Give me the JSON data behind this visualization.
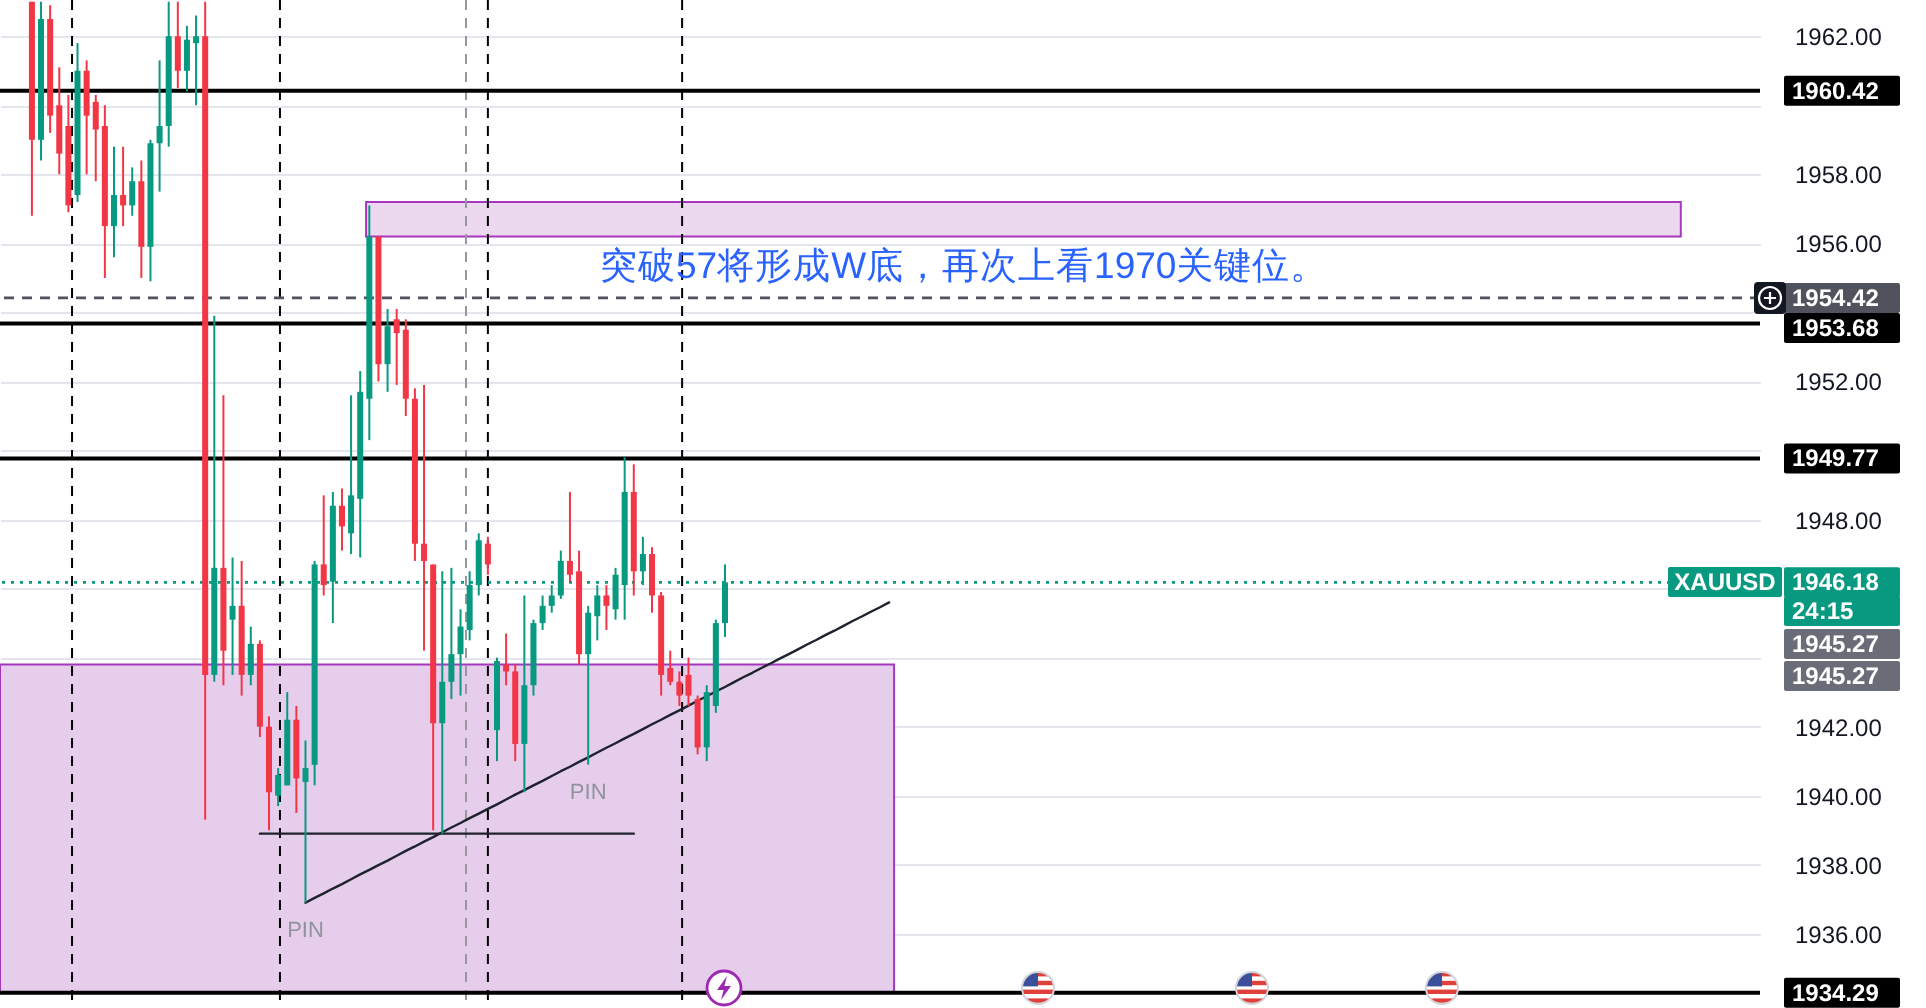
{
  "chart_data": {
    "type": "candlestick",
    "categories": [
      null,
      null,
      null,
      null,
      null,
      null,
      null,
      null,
      null,
      null,
      null,
      null,
      null,
      null,
      null,
      null,
      null,
      null,
      null,
      null,
      null,
      null,
      null,
      null,
      null,
      null,
      null,
      null,
      null,
      null,
      null,
      null,
      null,
      null,
      null,
      null,
      null,
      null,
      null,
      null,
      null,
      null,
      null,
      null,
      null,
      null,
      null,
      null,
      null,
      null,
      null,
      null,
      null,
      null,
      null,
      null,
      null,
      null,
      null,
      null,
      null,
      null,
      null,
      null,
      null,
      null,
      null,
      null,
      null,
      null,
      null,
      null,
      null,
      null,
      null,
      null,
      null,
      null,
      null,
      null,
      null,
      null,
      null,
      null,
      null,
      null,
      null,
      null,
      null,
      null,
      null,
      null,
      null,
      null,
      null,
      null,
      null,
      null,
      null,
      null,
      null,
      null,
      null,
      null,
      null,
      null,
      null,
      null,
      null,
      null,
      null,
      null,
      null,
      null,
      null,
      null,
      null,
      null,
      null,
      null,
      null,
      null,
      null,
      null,
      null,
      null,
      null,
      null,
      null,
      null,
      null,
      null,
      null,
      null,
      null,
      null,
      null,
      null,
      null,
      null,
      null,
      null,
      null,
      null,
      null,
      null,
      null,
      null,
      null,
      null,
      null,
      null,
      null,
      null,
      null,
      null,
      null,
      null,
      null,
      null,
      null,
      null,
      null,
      null,
      null,
      null,
      null,
      null,
      null,
      null,
      null,
      null,
      null,
      null,
      null,
      null,
      null,
      null,
      null,
      null,
      null,
      null,
      null,
      null,
      null,
      null,
      null,
      null,
      null,
      null,
      null,
      null,
      null
    ],
    "ohlc": [
      null,
      null,
      null,
      [
        1963.0,
        1963.0,
        1956.8,
        1959.0
      ],
      [
        1959.0,
        1963.0,
        1958.4,
        1962.5
      ],
      [
        1962.5,
        1962.9,
        1959.2,
        1959.7
      ],
      [
        1960.0,
        1961.1,
        1958.0,
        1958.6
      ],
      [
        1959.4,
        1960.3,
        1956.9,
        1957.1
      ],
      [
        1957.4,
        1961.8,
        1957.2,
        1961.0
      ],
      [
        1961.0,
        1961.3,
        1958.0,
        1959.7
      ],
      [
        1960.1,
        1960.3,
        1957.8,
        1959.3
      ],
      [
        1959.4,
        1960.0,
        1955.0,
        1956.5
      ],
      [
        1956.5,
        1958.8,
        1955.6,
        1957.4
      ],
      [
        1957.4,
        1958.8,
        1956.5,
        1957.1
      ],
      [
        1957.1,
        1958.2,
        1956.8,
        1957.8
      ],
      [
        1957.8,
        1958.4,
        1955.0,
        1955.9
      ],
      [
        1955.9,
        1959.0,
        1954.9,
        1958.9
      ],
      [
        1958.9,
        1961.3,
        1957.5,
        1959.4
      ],
      [
        1959.4,
        1963.0,
        1958.8,
        1962.0
      ],
      [
        1962.0,
        1963.0,
        1960.5,
        1961.0
      ],
      [
        1961.0,
        1962.3,
        1960.4,
        1961.9
      ],
      [
        1961.8,
        1962.6,
        1960.0,
        1962.0
      ],
      [
        1962.0,
        1963.0,
        1939.3,
        1943.5
      ],
      [
        1943.5,
        1953.9,
        1943.3,
        1946.6
      ],
      [
        1946.6,
        1951.6,
        1943.2,
        1944.2
      ],
      [
        1945.1,
        1946.9,
        1943.5,
        1945.5
      ],
      [
        1945.5,
        1946.8,
        1942.9,
        1943.5
      ],
      [
        1943.5,
        1944.9,
        1943.2,
        1944.4
      ],
      [
        1944.4,
        1944.5,
        1941.7,
        1942.0
      ],
      [
        1942.0,
        1942.3,
        1939.0,
        1940.1
      ],
      [
        1940.0,
        1940.8,
        1939.7,
        1940.6
      ],
      [
        1940.3,
        1943.0,
        1940.3,
        1942.2
      ],
      [
        1942.2,
        1942.6,
        1939.5,
        1940.5
      ],
      [
        1940.4,
        1941.6,
        1936.9,
        1940.8
      ],
      [
        1940.9,
        1946.8,
        1940.3,
        1946.7
      ],
      [
        1946.7,
        1948.7,
        1945.8,
        1946.1
      ],
      [
        1946.2,
        1948.8,
        1945.0,
        1948.4
      ],
      [
        1948.4,
        1948.9,
        1947.1,
        1947.8
      ],
      [
        1947.6,
        1951.6,
        1947.0,
        1948.7
      ],
      [
        1948.6,
        1952.3,
        1946.9,
        1951.7
      ],
      [
        1951.5,
        1957.1,
        1950.3,
        1956.2
      ],
      [
        1956.2,
        1956.2,
        1952.0,
        1952.5
      ],
      [
        1952.5,
        1954.1,
        1951.7,
        1953.6
      ],
      [
        1953.8,
        1954.1,
        1951.9,
        1953.4
      ],
      [
        1953.5,
        1953.8,
        1951.0,
        1951.5
      ],
      [
        1951.5,
        1951.8,
        1946.8,
        1947.3
      ],
      [
        1947.3,
        1951.9,
        1944.2,
        1946.8
      ],
      [
        1946.7,
        1946.7,
        1939.0,
        1942.1
      ],
      [
        1942.1,
        1946.5,
        1938.9,
        1943.3
      ],
      [
        1943.3,
        1946.6,
        1942.8,
        1944.1
      ],
      [
        1944.1,
        1945.4,
        1942.9,
        1944.9
      ],
      [
        1944.8,
        1946.5,
        1944.5,
        1946.1
      ],
      [
        1946.1,
        1947.6,
        1945.8,
        1947.4
      ],
      [
        1947.3,
        1947.5,
        1946.4,
        1946.7
      ],
      [
        1941.9,
        1944.0,
        1941.0,
        1943.9
      ],
      [
        1943.8,
        1944.7,
        1943.2,
        1943.6
      ],
      [
        1943.6,
        1943.8,
        1941.0,
        1941.5
      ],
      [
        1941.5,
        1945.8,
        1940.1,
        1943.2
      ],
      [
        1943.2,
        1945.1,
        1942.9,
        1945.0
      ],
      [
        1945.0,
        1945.8,
        1944.8,
        1945.5
      ],
      [
        1945.5,
        1946.1,
        1945.3,
        1945.8
      ],
      [
        1945.8,
        1947.1,
        1945.7,
        1946.8
      ],
      [
        1946.8,
        1948.8,
        1946.2,
        1946.4
      ],
      [
        1946.5,
        1947.1,
        1943.8,
        1944.1
      ],
      [
        1944.1,
        1945.5,
        1940.9,
        1945.3
      ],
      [
        1945.2,
        1946.1,
        1944.5,
        1945.8
      ],
      [
        1945.8,
        1946.1,
        1944.8,
        1945.5
      ],
      [
        1945.4,
        1946.6,
        1945.1,
        1946.4
      ],
      [
        1946.1,
        1949.8,
        1945.1,
        1948.8
      ],
      [
        1948.8,
        1949.6,
        1945.8,
        1946.5
      ],
      [
        1946.5,
        1947.5,
        1946.1,
        1947.0
      ],
      [
        1947.0,
        1947.2,
        1945.3,
        1945.8
      ],
      [
        1945.8,
        1945.9,
        1942.9,
        1943.5
      ],
      [
        1943.7,
        1944.2,
        1943.2,
        1943.3
      ],
      [
        1943.3,
        1943.6,
        1942.6,
        1942.9
      ],
      [
        1943.5,
        1944.0,
        1942.6,
        1942.9
      ],
      [
        1942.8,
        1942.9,
        1941.2,
        1941.4
      ],
      [
        1941.4,
        1943.2,
        1941.0,
        1943.0
      ],
      [
        1942.6,
        1945.1,
        1942.4,
        1945.0
      ],
      [
        1945.0,
        1946.7,
        1944.6,
        1946.18
      ],
      null,
      null,
      null,
      null,
      null,
      null,
      null,
      null,
      null,
      null,
      null,
      null,
      null,
      null,
      null,
      null,
      null,
      null,
      null,
      null,
      null,
      null,
      null,
      null,
      null,
      null,
      null,
      null,
      null,
      null,
      null,
      null,
      null,
      null,
      null,
      null,
      null,
      null,
      null,
      null,
      null,
      null,
      null,
      null,
      null,
      null,
      null,
      null,
      null,
      null,
      null,
      null,
      null,
      null,
      null,
      null,
      null,
      null,
      null,
      null,
      null,
      null,
      null,
      null,
      null,
      null,
      null,
      null,
      null,
      null,
      null,
      null,
      null,
      null,
      null,
      null,
      null,
      null,
      null,
      null,
      null,
      null,
      null,
      null,
      null,
      null,
      null,
      null,
      null,
      null,
      null,
      null,
      null,
      null,
      null,
      null,
      null,
      null,
      null,
      null,
      null,
      null,
      null,
      null,
      null,
      null,
      null,
      null,
      null,
      null,
      null,
      null,
      null
    ],
    "colors": [
      null,
      null,
      null,
      "#f23645",
      "#089981",
      "#f23645",
      "#f23645",
      "#f23645",
      "#089981",
      "#f23645",
      "#f23645",
      "#f23645",
      "#089981",
      "#f23645",
      "#089981",
      "#f23645",
      "#089981",
      "#089981",
      "#089981",
      "#f23645",
      "#089981",
      "#089981",
      "#f23645",
      "#089981",
      "#f23645",
      "#089981",
      "#f23645",
      "#089981",
      "#f23645",
      "#f23645",
      "#089981",
      "#089981",
      "#f23645",
      "#089981",
      "#089981",
      "#f23645",
      "#089981",
      "#f23645",
      "#089981",
      "#089981",
      "#089981",
      "#f23645",
      "#089981",
      "#f23645",
      "#f23645",
      "#f23645",
      "#f23645",
      "#f23645",
      "#089981",
      "#089981",
      "#089981",
      "#089981",
      "#089981",
      "#f23645",
      "#089981",
      "#f23645",
      "#f23645",
      "#089981",
      "#089981",
      "#089981",
      "#089981",
      "#089981",
      "#f23645",
      "#f23645",
      "#089981",
      "#089981",
      "#f23645",
      "#089981",
      "#089981",
      "#f23645",
      "#089981",
      "#f23645",
      "#f23645",
      "#f23645",
      "#f23645",
      "#f23645",
      "#f23645",
      "#089981",
      "#089981",
      "#089981",
      null,
      null,
      null,
      null,
      null,
      null,
      null,
      null,
      null,
      null,
      null,
      null,
      null,
      null,
      null,
      null,
      null,
      null,
      null,
      null,
      null,
      null,
      null,
      null,
      null,
      null,
      null,
      null,
      null,
      null,
      null,
      null,
      null,
      null,
      null,
      null,
      null,
      null,
      null,
      null,
      null,
      null,
      null,
      null,
      null,
      null,
      null,
      null,
      null,
      null,
      null,
      null,
      null,
      null,
      null,
      null,
      null,
      null,
      null,
      null,
      null,
      null,
      null,
      null,
      null,
      null,
      null,
      null,
      null,
      null,
      null,
      null,
      null,
      null,
      null,
      null,
      null,
      null,
      null,
      null,
      null,
      null,
      null,
      null,
      null,
      null,
      null,
      null,
      null,
      null,
      null,
      null,
      null,
      null,
      null,
      null,
      null,
      null,
      null,
      null,
      null,
      null,
      null,
      null,
      null,
      null,
      null,
      null,
      null,
      null,
      null,
      null,
      null
    ],
    "series": [
      {
        "type": "line",
        "color": "#1e222d",
        "values": [
          null,
          null,
          null,
          null,
          null,
          null,
          null,
          null,
          null,
          null,
          null,
          null,
          null,
          null,
          null,
          null,
          null,
          null,
          null,
          null,
          null,
          null,
          null,
          null,
          null,
          null,
          null,
          null,
          null,
          null,
          null,
          null,
          null,
          1936.9,
          1937.04,
          1937.17,
          1937.31,
          1937.44,
          1937.58,
          1937.72,
          1937.85,
          1937.99,
          1938.12,
          1938.26,
          1938.4,
          1938.53,
          1938.67,
          1938.8,
          1938.94,
          1939.08,
          1939.21,
          1939.35,
          1939.48,
          1939.62,
          1939.75,
          1939.89,
          1940.03,
          1940.16,
          1940.3,
          1940.43,
          1940.57,
          1940.71,
          1940.84,
          1940.98,
          1941.11,
          1941.25,
          1941.39,
          1941.52,
          1941.66,
          1941.79,
          1941.93,
          1942.07,
          1942.2,
          1942.34,
          1942.47,
          1942.61,
          1942.75,
          1942.88,
          1943.02,
          1943.15,
          1943.29,
          1943.43,
          1943.56,
          1943.7,
          1943.83,
          1943.97,
          1944.1,
          1944.24,
          1944.38,
          1944.51,
          1944.65,
          1944.78,
          1944.92,
          1945.06,
          1945.19,
          1945.33,
          1945.46,
          1945.6,
          null,
          null,
          null,
          null,
          null,
          null,
          null,
          null,
          null,
          null,
          null,
          null,
          null,
          null,
          null,
          null,
          null,
          null,
          null,
          null,
          null,
          null,
          null,
          null,
          null,
          null,
          null,
          null,
          null,
          null,
          null,
          null,
          null,
          null,
          null,
          null,
          null,
          null,
          null,
          null,
          null,
          null,
          null,
          null,
          null,
          null,
          null,
          null,
          null,
          null,
          null,
          null,
          null,
          null,
          null,
          null,
          null,
          null,
          null,
          null,
          null,
          null,
          null,
          null,
          null,
          null,
          null,
          null,
          null,
          null,
          null,
          null,
          null,
          null,
          null,
          null,
          null,
          null,
          null,
          null,
          null,
          null,
          null,
          null,
          null,
          null,
          null,
          null,
          null,
          null,
          null,
          null,
          null,
          null,
          null
        ]
      },
      {
        "type": "line",
        "color": "#1e222d",
        "values": [
          null,
          null,
          null,
          null,
          null,
          null,
          null,
          null,
          null,
          null,
          null,
          null,
          null,
          null,
          null,
          null,
          null,
          null,
          null,
          null,
          null,
          null,
          null,
          null,
          null,
          null,
          null,
          null,
          1938.9,
          1938.9,
          1938.9,
          1938.9,
          1938.9,
          1938.9,
          1938.9,
          1938.9,
          1938.9,
          1938.9,
          1938.9,
          1938.9,
          1938.9,
          1938.9,
          1938.9,
          1938.9,
          1938.9,
          1938.9,
          1938.9,
          1938.9,
          1938.9,
          1938.9,
          1938.9,
          1938.9,
          1938.9,
          1938.9,
          1938.9,
          1938.9,
          1938.9,
          1938.9,
          1938.9,
          1938.9,
          1938.9,
          1938.9,
          1938.9,
          1938.9,
          1938.9,
          1938.9,
          1938.9,
          1938.9,
          1938.9,
          1938.9,
          null,
          null,
          null,
          null,
          null,
          null,
          null,
          null,
          null,
          null,
          null,
          null,
          null,
          null,
          null,
          null,
          null,
          null,
          null,
          null,
          null,
          null,
          null,
          null,
          null,
          null,
          null,
          null,
          null,
          null,
          null,
          null,
          null,
          null,
          null,
          null,
          null,
          null,
          null,
          null,
          null,
          null,
          null,
          null,
          null,
          null,
          null,
          null,
          null,
          null,
          null,
          null,
          null,
          null,
          null,
          null,
          null,
          null,
          null,
          null,
          null,
          null,
          null,
          null,
          null,
          null,
          null,
          null,
          null,
          null,
          null,
          null,
          null,
          null,
          null,
          null,
          null,
          null,
          null,
          null,
          null,
          null,
          null,
          null,
          null,
          null,
          null,
          null,
          null,
          null,
          null,
          null,
          null,
          null,
          null,
          null,
          null,
          null,
          null,
          null,
          null,
          null,
          null,
          null,
          null,
          null,
          null,
          null,
          null,
          null,
          null,
          null,
          null,
          null,
          null,
          null,
          null,
          null,
          null,
          null,
          null,
          null,
          null
        ]
      }
    ],
    "ylim": [
      1933.85,
      1963.05
    ],
    "yticks": [
      {
        "value": 1936,
        "label": "1936.00"
      },
      {
        "value": 1938,
        "label": "1938.00"
      },
      {
        "value": 1940,
        "label": "1940.00"
      },
      {
        "value": 1942,
        "label": "1942.00"
      },
      {
        "value": 1944,
        "label": null
      },
      {
        "value": 1946,
        "label": null
      },
      {
        "value": 1948,
        "label": "1948.00"
      },
      {
        "value": 1950,
        "label": null
      },
      {
        "value": 1952,
        "label": "1952.00"
      },
      {
        "value": 1954,
        "label": null
      },
      {
        "value": 1956,
        "label": "1956.00"
      },
      {
        "value": 1958,
        "label": "1958.00"
      },
      {
        "value": 1960,
        "label": null
      },
      {
        "value": 1962,
        "label": "1962.00"
      }
    ],
    "tick_labels": "y",
    "grid": "y",
    "ref_lines": [
      {
        "axis": "y",
        "value": 1960.42,
        "label": "1960.42",
        "color": "#000000",
        "line_style": "solid"
      },
      {
        "axis": "y",
        "value": 1954.42,
        "label": "1954.42",
        "color": "#50535e",
        "line_style": "dashed"
      },
      {
        "axis": "y",
        "value": 1953.68,
        "label": "1953.68",
        "color": "#000000",
        "line_style": "solid"
      },
      {
        "axis": "y",
        "value": 1949.77,
        "label": "1949.77",
        "color": "#000000",
        "line_style": "solid"
      },
      {
        "axis": "y",
        "value": 1946.18,
        "label": "1946.18",
        "color": "#089981",
        "line_style": "dotted"
      },
      {
        "axis": "y",
        "value": 1934.29,
        "label": "1934.29",
        "color": "#000000",
        "line_style": "solid"
      }
    ],
    "bands": [
      {
        "axis": "y",
        "from": 1934.29,
        "to": 1943.8,
        "color": "#e6cdec"
      },
      {
        "axis": "y",
        "from": 1956.2,
        "to": 1957.2,
        "color": "#ecd9f0"
      }
    ],
    "annotations": [
      "突破57将形成W底，再次上看1970关键位。",
      {
        "text": "PIN",
        "y": 1936.9
      },
      {
        "text": "PIN",
        "y": 1940.9
      },
      "XAUUSD",
      "24:15",
      "1945.27",
      "1945.27"
    ]
  }
}
